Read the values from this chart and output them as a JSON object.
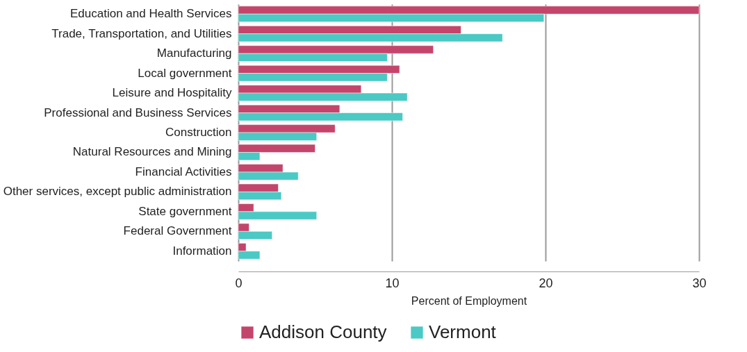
{
  "chart_data": {
    "type": "bar",
    "orientation": "horizontal",
    "xlabel": "Percent of Employment",
    "categories": [
      "Education and Health Services",
      "Trade, Transportation, and Utilities",
      "Manufacturing",
      "Local government",
      "Leisure and Hospitality",
      "Professional and Business Services",
      "Construction",
      "Natural Resources and Mining",
      "Financial Activities",
      "Other services, except public administration",
      "State government",
      "Federal Government",
      "Information"
    ],
    "series": [
      {
        "name": "Addison County",
        "color": "#c4456b",
        "values": [
          30,
          14.5,
          12.7,
          10.5,
          8,
          6.6,
          6.3,
          5,
          2.9,
          2.6,
          1,
          0.7,
          0.5
        ]
      },
      {
        "name": "Vermont",
        "color": "#4bc9c4",
        "values": [
          19.9,
          17.2,
          9.7,
          9.7,
          11,
          10.7,
          5.1,
          1.4,
          3.9,
          2.8,
          5.1,
          2.2,
          1.4
        ]
      }
    ],
    "xlim": [
      0,
      30
    ],
    "xticks": [
      0,
      10,
      20,
      30
    ],
    "grid": "x",
    "legend": "bottom"
  }
}
